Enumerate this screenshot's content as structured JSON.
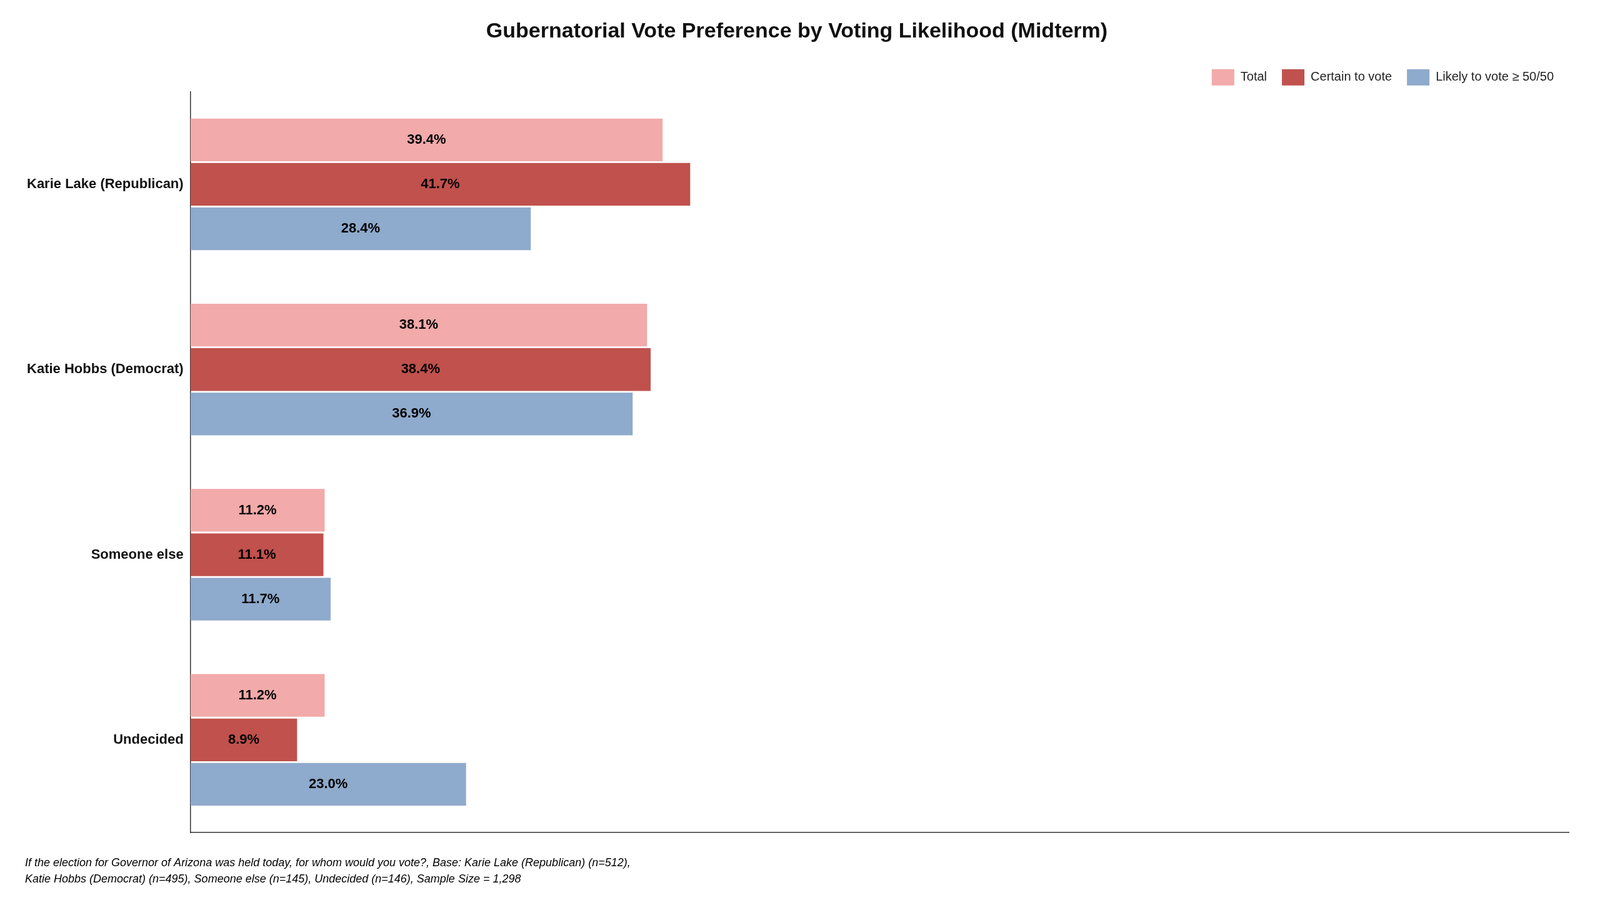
{
  "chart_data": {
    "type": "bar",
    "orientation": "horizontal",
    "title": "Gubernatorial Vote Preference by Voting Likelihood (Midterm)",
    "categories": [
      "Karie Lake (Republican)",
      "Katie Hobbs (Democrat)",
      "Someone else",
      "Undecided"
    ],
    "series": [
      {
        "name": "Total",
        "color": "#f2aaaa",
        "values": [
          39.4,
          38.1,
          11.2,
          11.2
        ],
        "value_labels": [
          "39.4%",
          "38.1%",
          "11.2%",
          "11.2%"
        ]
      },
      {
        "name": "Certain to vote",
        "color": "#c0514d",
        "values": [
          41.7,
          38.4,
          11.1,
          8.9
        ],
        "value_labels": [
          "41.7%",
          "38.4%",
          "11.1%",
          "8.9%"
        ]
      },
      {
        "name": "Likely to vote ≥ 50/50",
        "color": "#8eaacc",
        "values": [
          28.4,
          36.9,
          11.7,
          23.0
        ],
        "value_labels": [
          "28.4%",
          "36.9%",
          "11.7%",
          "23.0%"
        ]
      }
    ],
    "xlim": [
      0,
      115
    ],
    "grid": false,
    "legend": "upper right",
    "data_labels": true,
    "tick_labels": "y",
    "footnote": [
      "If the election for Governor of Arizona was held today, for whom would you vote?, Base: Karie Lake (Republican) (n=512),",
      "Katie Hobbs (Democrat) (n=495), Someone else (n=145), Undecided (n=146), Sample Size = 1,298"
    ]
  }
}
